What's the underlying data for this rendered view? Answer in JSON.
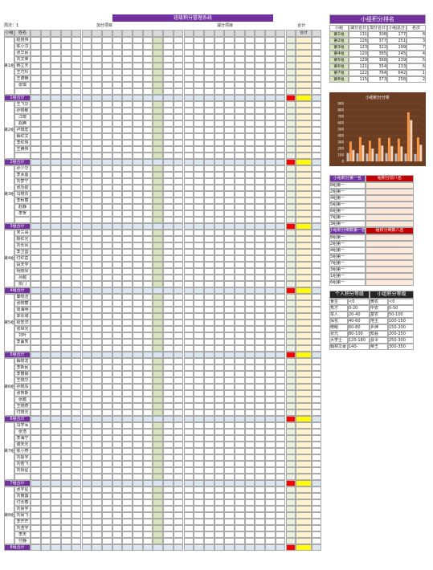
{
  "header": {
    "title": "班级积分管理系统",
    "week": "周次：1",
    "plus_heading": "加分项目",
    "minus_heading": "减分项目",
    "total_heading": "合计"
  },
  "columns": {
    "group": "小组",
    "name": "姓名",
    "total": "合计"
  },
  "groups": [
    {
      "label": "第1组",
      "total_label": "1组合计",
      "members": [
        "赵晓伟",
        "陈小汉",
        "张华民",
        "刘文荣",
        "韩立天",
        "王巧玲",
        "王德楠",
        "张琪"
      ]
    },
    {
      "label": "第2组",
      "total_label": "2组合计",
      "members": [
        "王飞华",
        "孙晓敏",
        "江晓",
        "赵腾",
        "卢晓宏",
        "解红文",
        "李红伟",
        "王腾伟"
      ]
    },
    {
      "label": "第3组",
      "total_label": "3组合计",
      "members": [
        "孙少华",
        "李芙蓉",
        "刘梦宁",
        "张功勋",
        "马晓东",
        "李秋丽",
        "赵静",
        "李贺"
      ]
    },
    {
      "label": "第4组",
      "total_label": "4组合计",
      "members": [
        "宋三哥",
        "颜红光",
        "刘长风",
        "李卫国",
        "付红岳",
        "段天学",
        "杨晓琴",
        "孙越",
        "凯门"
      ]
    },
    {
      "label": "第5组",
      "total_label": "5组合计",
      "members": [
        "秦晓洁",
        "张晓丽",
        "周海明",
        "郑长城",
        "赵宏洋",
        "张世光",
        "刘叶",
        "李蔓秀"
      ]
    },
    {
      "label": "第6组",
      "total_label": "6组合计",
      "members": [
        "解晓龙",
        "李新民",
        "李丽娟",
        "王晓华",
        "孙晓东",
        "张贺斯",
        "张越",
        "王晓燕",
        "付晓元"
      ]
    },
    {
      "label": "第7组",
      "total_label": "7组合计",
      "members": [
        "冯学军",
        "张浩",
        "李海宁",
        "谢天元",
        "陈小燕",
        "刘振宇",
        "刘若飞",
        "刘阳星"
      ]
    },
    {
      "label": "第8组",
      "total_label": "8组合计",
      "members": [
        "张宇星",
        "刘雨露",
        "付长春",
        "刘尚宇",
        "刘尚飞",
        "李芒芒",
        "刘浩宇",
        "李天",
        "付静"
      ]
    }
  ],
  "ranking": {
    "title": "小组积分排名",
    "headers": [
      "小组",
      "减分合计",
      "加分合计",
      "小组总分",
      "名次"
    ],
    "rows": [
      [
        "第1组",
        131,
        308,
        177,
        8
      ],
      [
        "第2组",
        126,
        377,
        251,
        3
      ],
      [
        "第3组",
        123,
        322,
        199,
        7
      ],
      [
        "第4组",
        120,
        365,
        245,
        4
      ],
      [
        "第5组",
        129,
        368,
        239,
        5
      ],
      [
        "第6组",
        121,
        354,
        233,
        6
      ],
      [
        "第7组",
        122,
        764,
        642,
        1
      ],
      [
        "第8组",
        115,
        373,
        258,
        2
      ]
    ]
  },
  "chart": {
    "title": "小组积分分析",
    "ylim": [
      0,
      900
    ],
    "yticks": [
      0,
      100,
      200,
      300,
      400,
      500,
      600,
      700,
      800,
      900
    ]
  },
  "first_place": {
    "headers": [
      "小组积分第一名",
      "组积分前八名"
    ],
    "rows": [
      "8组第一",
      "2组第一",
      "4组第一",
      "5组第一",
      "6组第一",
      "7组第一",
      "3组第一",
      "1组第一"
    ]
  },
  "last_place": {
    "headers": [
      "小组积分倒数第一名",
      "组积分倒数八名"
    ],
    "rows": [
      "8组第一",
      "2组第一",
      "4组第一",
      "5组第一",
      "7组第一",
      "3组第一",
      "1组第一",
      "6组第一"
    ]
  },
  "grades": {
    "headers": [
      "个人积分等级",
      "小组积分等级"
    ],
    "rows": [
      [
        "食生",
        "<0",
        "黄农",
        "<0"
      ],
      [
        "秀才",
        "0-20",
        "中农",
        "0-50"
      ],
      [
        "举人",
        "20-40",
        "富农",
        "50-100"
      ],
      [
        "探花",
        "40-60",
        "地主",
        "100-150"
      ],
      [
        "榜眼",
        "60-80",
        "乡绅",
        "150-200"
      ],
      [
        "状元",
        "80-100",
        "知县",
        "200-250"
      ],
      [
        "大学士",
        "120-180",
        "县令",
        "250-300"
      ],
      [
        "翰林文豪",
        "140-",
        "帝王",
        "300-350"
      ]
    ]
  }
}
